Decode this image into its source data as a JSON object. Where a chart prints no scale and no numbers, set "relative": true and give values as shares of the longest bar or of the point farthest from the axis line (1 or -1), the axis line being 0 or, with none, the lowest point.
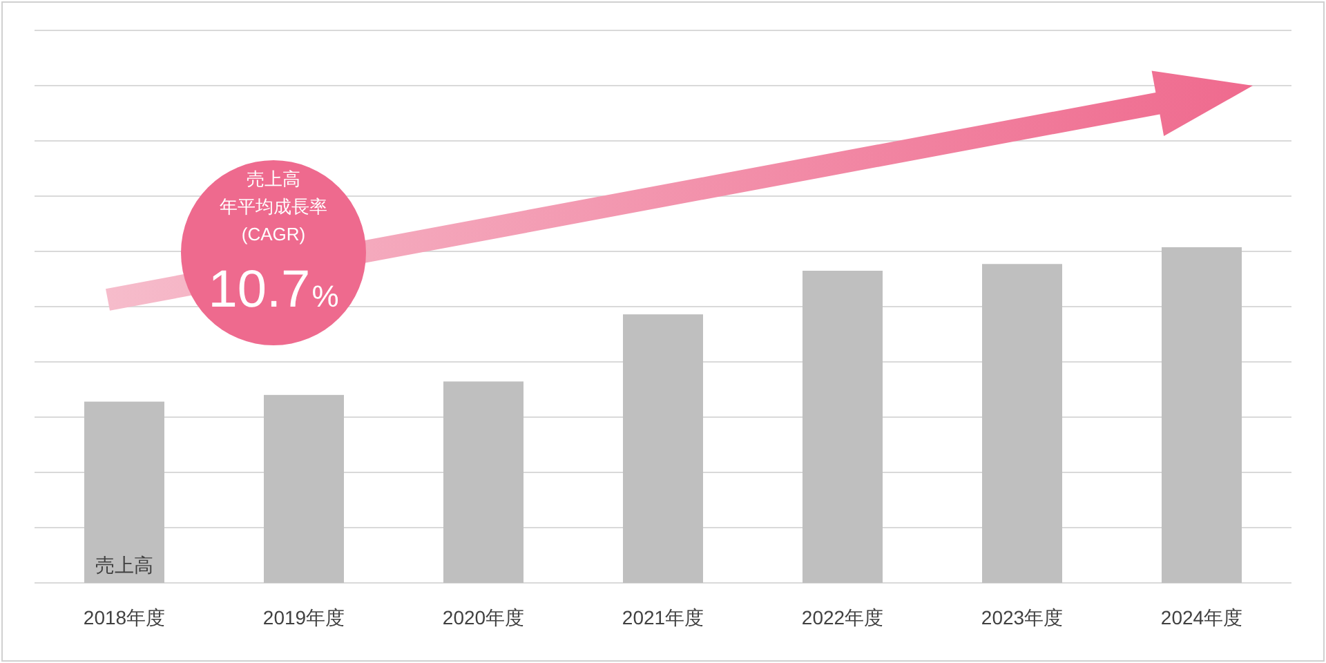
{
  "chart_data": {
    "type": "bar",
    "relative": true,
    "grid": "y",
    "categories": [
      "2018年度",
      "2019年度",
      "2020年度",
      "2021年度",
      "2022年度",
      "2023年度",
      "2024年度"
    ],
    "series": [
      {
        "name": "売上高",
        "color": "#bfbfbf",
        "values": [
          0.54,
          0.56,
          0.6,
          0.8,
          0.93,
          0.95,
          1
        ]
      }
    ],
    "annotations": [
      "売上高",
      "年平均成長率",
      "(CAGR)",
      "10.7%"
    ]
  }
}
